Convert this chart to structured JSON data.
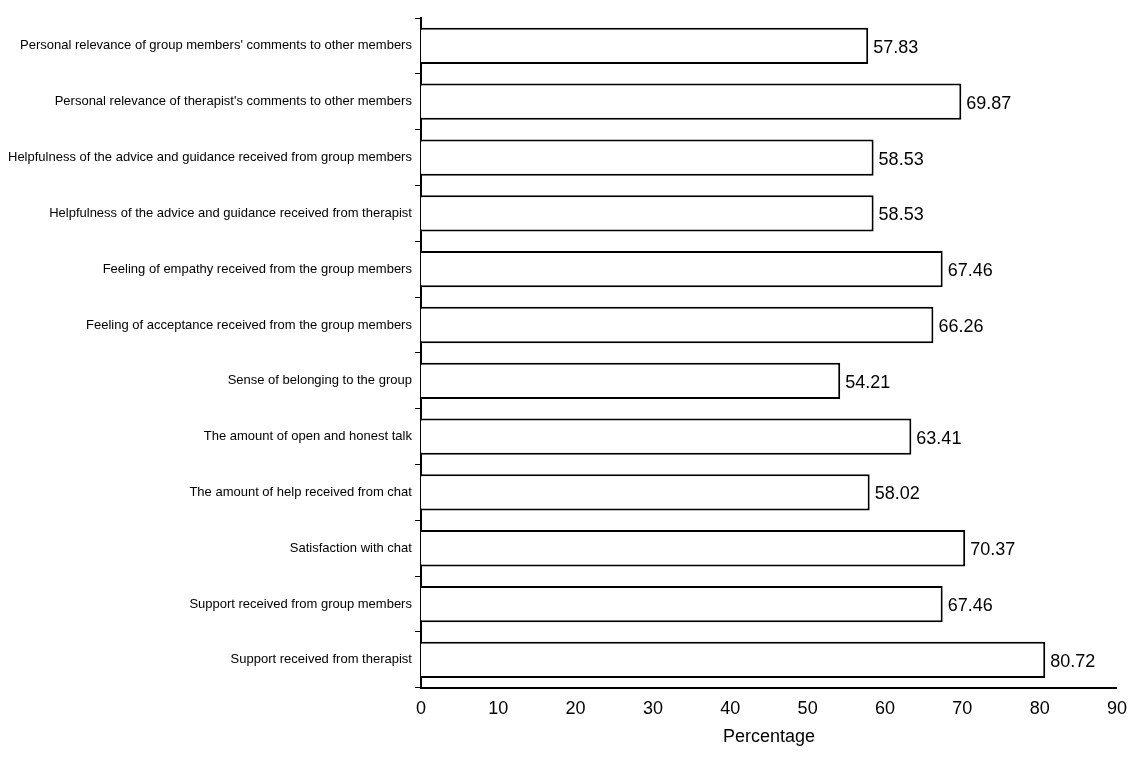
{
  "chart_data": {
    "type": "bar",
    "orientation": "horizontal",
    "xlabel": "Percentage",
    "categories": [
      "Personal relevance of group members' comments to other members",
      "Personal relevance of therapist's comments to other members",
      "Helpfulness of the advice and guidance received from group members",
      "Helpfulness of the advice and guidance received from therapist",
      "Feeling of empathy received from the group members",
      "Feeling of acceptance received from the group members",
      "Sense of belonging to the group",
      "The amount of open and honest talk",
      "The amount of help received from chat",
      "Satisfaction with chat",
      "Support received from group members",
      "Support received from therapist"
    ],
    "values": [
      57.83,
      69.87,
      58.53,
      58.53,
      67.46,
      66.26,
      54.21,
      63.41,
      58.02,
      70.37,
      67.46,
      80.72
    ],
    "color": "#ffffff",
    "xlim": [
      0,
      90
    ],
    "xticks": [
      0,
      10,
      20,
      30,
      40,
      50,
      60,
      70,
      80,
      90
    ],
    "grid": false,
    "legend": false,
    "data_labels": true
  }
}
